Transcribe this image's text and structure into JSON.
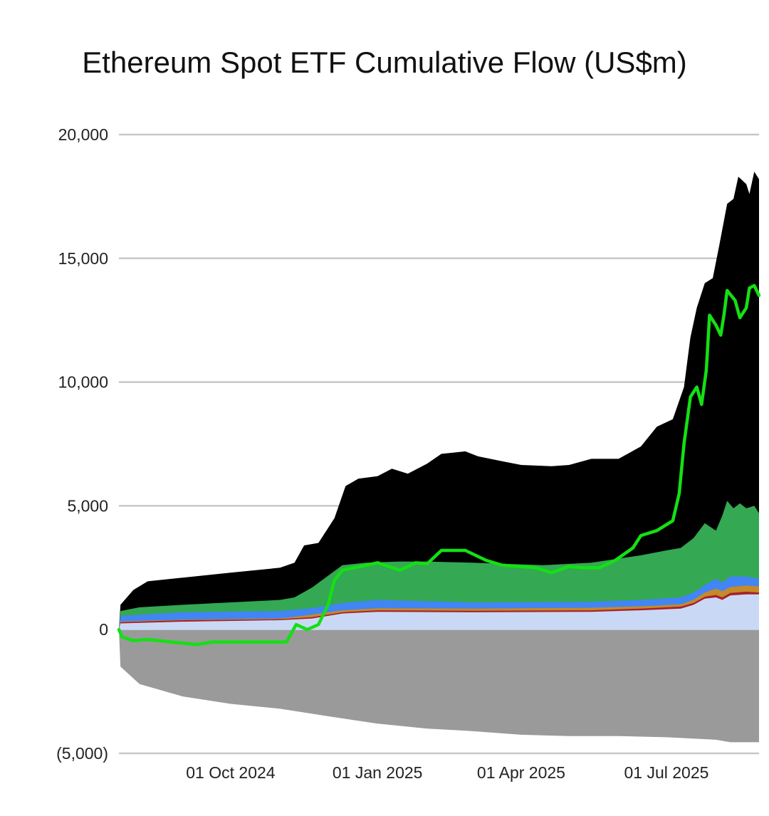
{
  "chart_data": {
    "type": "area",
    "title": "Ethereum Spot ETF Cumulative Flow (US$m)",
    "xlabel": "",
    "ylabel": "",
    "x_range": [
      "2024-07-23",
      "2025-08-28"
    ],
    "ylim": [
      -5000,
      20000
    ],
    "grid": true,
    "legend": "none",
    "yticks": [
      {
        "value": 20000,
        "label": "20,000"
      },
      {
        "value": 15000,
        "label": "15,000"
      },
      {
        "value": 10000,
        "label": "10,000"
      },
      {
        "value": 5000,
        "label": "5,000"
      },
      {
        "value": 0,
        "label": "0"
      },
      {
        "value": -5000,
        "label": "(5,000)"
      }
    ],
    "xticks": [
      {
        "date": "2024-10-01",
        "label": "01 Oct 2024"
      },
      {
        "date": "2025-01-01",
        "label": "01 Jan 2025"
      },
      {
        "date": "2025-04-01",
        "label": "01 Apr 2025"
      },
      {
        "date": "2025-07-01",
        "label": "01 Jul 2025"
      }
    ],
    "series": [
      {
        "name": "light-blue-band",
        "kind": "area-positive",
        "color": "#c9d9f5",
        "points": [
          [
            "2024-07-23",
            0
          ],
          [
            "2024-07-24",
            250
          ],
          [
            "2024-09-01",
            320
          ],
          [
            "2024-11-01",
            380
          ],
          [
            "2024-11-21",
            450
          ],
          [
            "2024-12-10",
            650
          ],
          [
            "2025-01-01",
            720
          ],
          [
            "2025-03-01",
            700
          ],
          [
            "2025-05-15",
            720
          ],
          [
            "2025-06-15",
            780
          ],
          [
            "2025-07-10",
            850
          ],
          [
            "2025-07-18",
            1000
          ],
          [
            "2025-07-25",
            1250
          ],
          [
            "2025-08-01",
            1300
          ],
          [
            "2025-08-05",
            1200
          ],
          [
            "2025-08-10",
            1380
          ],
          [
            "2025-08-20",
            1420
          ],
          [
            "2025-08-28",
            1420
          ]
        ]
      },
      {
        "name": "red-band",
        "kind": "area-positive",
        "color": "#a8202a",
        "points": [
          [
            "2024-07-23",
            0
          ],
          [
            "2024-07-24",
            300
          ],
          [
            "2024-09-01",
            380
          ],
          [
            "2024-11-01",
            420
          ],
          [
            "2024-11-21",
            500
          ],
          [
            "2024-12-10",
            700
          ],
          [
            "2025-01-01",
            780
          ],
          [
            "2025-03-01",
            760
          ],
          [
            "2025-05-15",
            780
          ],
          [
            "2025-06-15",
            850
          ],
          [
            "2025-07-10",
            930
          ],
          [
            "2025-07-18",
            1080
          ],
          [
            "2025-07-25",
            1330
          ],
          [
            "2025-08-01",
            1400
          ],
          [
            "2025-08-05",
            1300
          ],
          [
            "2025-08-10",
            1480
          ],
          [
            "2025-08-20",
            1530
          ],
          [
            "2025-08-28",
            1500
          ]
        ]
      },
      {
        "name": "orange-band",
        "kind": "area-positive",
        "color": "#c58a2a",
        "points": [
          [
            "2024-07-23",
            0
          ],
          [
            "2024-07-24",
            330
          ],
          [
            "2024-09-01",
            400
          ],
          [
            "2024-11-01",
            450
          ],
          [
            "2024-11-21",
            600
          ],
          [
            "2024-12-10",
            780
          ],
          [
            "2025-01-01",
            860
          ],
          [
            "2025-03-01",
            850
          ],
          [
            "2025-05-15",
            880
          ],
          [
            "2025-06-15",
            940
          ],
          [
            "2025-07-10",
            1020
          ],
          [
            "2025-07-18",
            1200
          ],
          [
            "2025-07-25",
            1500
          ],
          [
            "2025-08-01",
            1650
          ],
          [
            "2025-08-05",
            1550
          ],
          [
            "2025-08-10",
            1720
          ],
          [
            "2025-08-20",
            1780
          ],
          [
            "2025-08-28",
            1750
          ]
        ]
      },
      {
        "name": "blue-band",
        "kind": "area-positive",
        "color": "#4285f4",
        "points": [
          [
            "2024-07-23",
            0
          ],
          [
            "2024-07-24",
            550
          ],
          [
            "2024-08-10",
            620
          ],
          [
            "2024-09-01",
            700
          ],
          [
            "2024-11-01",
            750
          ],
          [
            "2024-11-21",
            870
          ],
          [
            "2024-12-10",
            1080
          ],
          [
            "2025-01-01",
            1200
          ],
          [
            "2025-03-01",
            1100
          ],
          [
            "2025-05-15",
            1120
          ],
          [
            "2025-06-15",
            1200
          ],
          [
            "2025-07-10",
            1300
          ],
          [
            "2025-07-18",
            1500
          ],
          [
            "2025-07-25",
            1800
          ],
          [
            "2025-08-01",
            2050
          ],
          [
            "2025-08-05",
            1900
          ],
          [
            "2025-08-10",
            2150
          ],
          [
            "2025-08-20",
            2150
          ],
          [
            "2025-08-28",
            2050
          ]
        ]
      },
      {
        "name": "green-band",
        "kind": "area-positive",
        "color": "#34a853",
        "points": [
          [
            "2024-07-23",
            0
          ],
          [
            "2024-07-24",
            750
          ],
          [
            "2024-08-05",
            900
          ],
          [
            "2024-09-01",
            1000
          ],
          [
            "2024-10-01",
            1100
          ],
          [
            "2024-11-01",
            1200
          ],
          [
            "2024-11-10",
            1300
          ],
          [
            "2024-11-21",
            1700
          ],
          [
            "2024-12-10",
            2600
          ],
          [
            "2024-12-25",
            2700
          ],
          [
            "2025-01-15",
            2750
          ],
          [
            "2025-02-01",
            2750
          ],
          [
            "2025-03-01",
            2700
          ],
          [
            "2025-04-15",
            2600
          ],
          [
            "2025-05-15",
            2700
          ],
          [
            "2025-06-15",
            3000
          ],
          [
            "2025-07-01",
            3200
          ],
          [
            "2025-07-10",
            3300
          ],
          [
            "2025-07-18",
            3700
          ],
          [
            "2025-07-25",
            4300
          ],
          [
            "2025-08-01",
            4000
          ],
          [
            "2025-08-05",
            4600
          ],
          [
            "2025-08-08",
            5200
          ],
          [
            "2025-08-12",
            4900
          ],
          [
            "2025-08-16",
            5100
          ],
          [
            "2025-08-20",
            4900
          ],
          [
            "2025-08-25",
            5000
          ],
          [
            "2025-08-28",
            4700
          ]
        ]
      },
      {
        "name": "black-band",
        "kind": "area-positive",
        "color": "#000000",
        "points": [
          [
            "2024-07-23",
            0
          ],
          [
            "2024-07-24",
            1000
          ],
          [
            "2024-08-01",
            1600
          ],
          [
            "2024-08-10",
            1950
          ],
          [
            "2024-09-01",
            2100
          ],
          [
            "2024-10-01",
            2300
          ],
          [
            "2024-11-01",
            2500
          ],
          [
            "2024-11-10",
            2700
          ],
          [
            "2024-11-16",
            3400
          ],
          [
            "2024-11-25",
            3500
          ],
          [
            "2024-12-05",
            4500
          ],
          [
            "2024-12-12",
            5800
          ],
          [
            "2024-12-20",
            6100
          ],
          [
            "2025-01-01",
            6200
          ],
          [
            "2025-01-10",
            6500
          ],
          [
            "2025-01-20",
            6300
          ],
          [
            "2025-02-01",
            6700
          ],
          [
            "2025-02-10",
            7100
          ],
          [
            "2025-02-25",
            7200
          ],
          [
            "2025-03-05",
            7000
          ],
          [
            "2025-03-20",
            6800
          ],
          [
            "2025-04-01",
            6650
          ],
          [
            "2025-04-20",
            6600
          ],
          [
            "2025-05-01",
            6650
          ],
          [
            "2025-05-15",
            6900
          ],
          [
            "2025-06-01",
            6900
          ],
          [
            "2025-06-15",
            7400
          ],
          [
            "2025-06-25",
            8200
          ],
          [
            "2025-07-05",
            8500
          ],
          [
            "2025-07-12",
            9800
          ],
          [
            "2025-07-16",
            11800
          ],
          [
            "2025-07-20",
            13000
          ],
          [
            "2025-07-25",
            14000
          ],
          [
            "2025-07-30",
            14200
          ],
          [
            "2025-08-03",
            15500
          ],
          [
            "2025-08-08",
            17200
          ],
          [
            "2025-08-12",
            17400
          ],
          [
            "2025-08-15",
            18300
          ],
          [
            "2025-08-20",
            18000
          ],
          [
            "2025-08-22",
            17600
          ],
          [
            "2025-08-25",
            18500
          ],
          [
            "2025-08-28",
            18200
          ]
        ]
      },
      {
        "name": "gray-band",
        "kind": "area-negative",
        "color": "#9a9a9a",
        "points": [
          [
            "2024-07-23",
            0
          ],
          [
            "2024-07-24",
            -1500
          ],
          [
            "2024-08-05",
            -2200
          ],
          [
            "2024-09-01",
            -2700
          ],
          [
            "2024-10-01",
            -3000
          ],
          [
            "2024-11-01",
            -3200
          ],
          [
            "2024-12-01",
            -3500
          ],
          [
            "2025-01-01",
            -3800
          ],
          [
            "2025-02-01",
            -4000
          ],
          [
            "2025-03-01",
            -4100
          ],
          [
            "2025-04-01",
            -4250
          ],
          [
            "2025-05-01",
            -4300
          ],
          [
            "2025-06-01",
            -4300
          ],
          [
            "2025-07-01",
            -4350
          ],
          [
            "2025-08-01",
            -4450
          ],
          [
            "2025-08-10",
            -4550
          ],
          [
            "2025-08-28",
            -4550
          ]
        ]
      },
      {
        "name": "net-cumulative-flow",
        "kind": "line",
        "color": "#14e014",
        "points": [
          [
            "2024-07-23",
            0
          ],
          [
            "2024-07-25",
            -300
          ],
          [
            "2024-08-01",
            -450
          ],
          [
            "2024-08-10",
            -400
          ],
          [
            "2024-09-01",
            -550
          ],
          [
            "2024-09-10",
            -600
          ],
          [
            "2024-09-20",
            -500
          ],
          [
            "2024-10-15",
            -500
          ],
          [
            "2024-11-05",
            -500
          ],
          [
            "2024-11-11",
            200
          ],
          [
            "2024-11-18",
            0
          ],
          [
            "2024-11-25",
            200
          ],
          [
            "2024-12-01",
            1000
          ],
          [
            "2024-12-05",
            2000
          ],
          [
            "2024-12-10",
            2400
          ],
          [
            "2024-12-25",
            2600
          ],
          [
            "2025-01-01",
            2700
          ],
          [
            "2025-01-15",
            2400
          ],
          [
            "2025-01-25",
            2700
          ],
          [
            "2025-02-01",
            2650
          ],
          [
            "2025-02-10",
            3200
          ],
          [
            "2025-02-25",
            3200
          ],
          [
            "2025-03-10",
            2800
          ],
          [
            "2025-03-20",
            2600
          ],
          [
            "2025-04-10",
            2500
          ],
          [
            "2025-04-20",
            2300
          ],
          [
            "2025-05-01",
            2550
          ],
          [
            "2025-05-10",
            2500
          ],
          [
            "2025-05-20",
            2500
          ],
          [
            "2025-05-30",
            2800
          ],
          [
            "2025-06-10",
            3300
          ],
          [
            "2025-06-15",
            3800
          ],
          [
            "2025-06-25",
            4000
          ],
          [
            "2025-07-05",
            4400
          ],
          [
            "2025-07-09",
            5500
          ],
          [
            "2025-07-12",
            7500
          ],
          [
            "2025-07-16",
            9400
          ],
          [
            "2025-07-20",
            9800
          ],
          [
            "2025-07-23",
            9100
          ],
          [
            "2025-07-26",
            10500
          ],
          [
            "2025-07-28",
            12700
          ],
          [
            "2025-08-01",
            12300
          ],
          [
            "2025-08-04",
            11900
          ],
          [
            "2025-08-06",
            12700
          ],
          [
            "2025-08-08",
            13700
          ],
          [
            "2025-08-13",
            13300
          ],
          [
            "2025-08-16",
            12600
          ],
          [
            "2025-08-20",
            13000
          ],
          [
            "2025-08-22",
            13800
          ],
          [
            "2025-08-25",
            13900
          ],
          [
            "2025-08-28",
            13500
          ]
        ]
      }
    ]
  }
}
